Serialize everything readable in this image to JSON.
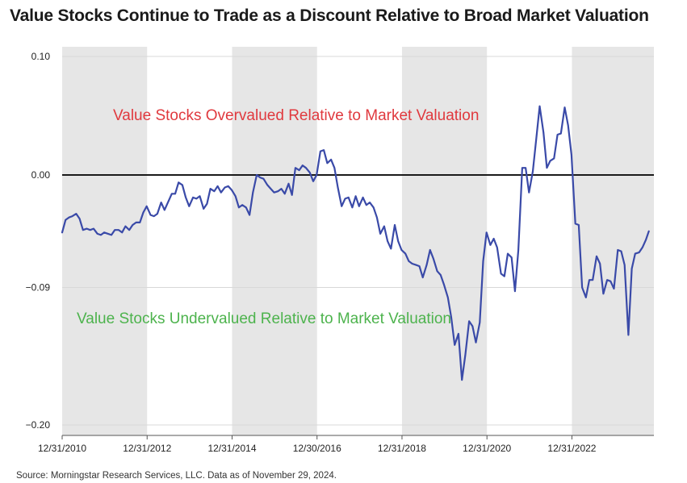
{
  "title": "Value Stocks Continue to Trade as a Discount Relative to Broad Market Valuation",
  "source": "Source: Morningstar Research Services, LLC. Data as of November 29, 2024.",
  "colors": {
    "line": "#3a4aa8",
    "shade": "#e6e6e6",
    "over": "#e0393e",
    "under": "#4db34d",
    "baseline": "#1a1a1a"
  },
  "chart_data": {
    "type": "line",
    "title": "Value Stocks Continue to Trade as a Discount Relative to Broad Market Valuation",
    "xlabel": "",
    "ylabel": "",
    "xlim": [
      2010.99,
      2024.92
    ],
    "ylim": [
      -0.2,
      0.1
    ],
    "y_ticks": [
      {
        "value": 0.1,
        "label": "0.10"
      },
      {
        "value": 0.0,
        "label": "0.00"
      },
      {
        "value": -0.09,
        "label": "−0.09"
      },
      {
        "value": -0.2,
        "label": "−0.20"
      }
    ],
    "x_ticks": [
      {
        "value": 2010.99,
        "label": "12/31/2010"
      },
      {
        "value": 2012.99,
        "label": "12/31/2012"
      },
      {
        "value": 2014.99,
        "label": "12/31/2014"
      },
      {
        "value": 2016.99,
        "label": "12/30/2016"
      },
      {
        "value": 2018.99,
        "label": "12/31/2018"
      },
      {
        "value": 2020.99,
        "label": "12/31/2020"
      },
      {
        "value": 2022.99,
        "label": "12/31/2022"
      }
    ],
    "shaded_bands": [
      [
        2010.99,
        2012.99
      ],
      [
        2014.99,
        2016.99
      ],
      [
        2018.99,
        2020.99
      ],
      [
        2022.99,
        2024.92
      ]
    ],
    "reference_lines": [
      {
        "y": 0.0
      }
    ],
    "annotations": [
      {
        "text": "Value Stocks Overvalued Relative to Market Valuation",
        "color": "#e0393e"
      },
      {
        "text": "Value Stocks Undervalued Relative to Market Valuation",
        "color": "#4db34d"
      }
    ],
    "series": [
      {
        "values": [
          [
            2010.99,
            -0.046
          ],
          [
            2011.07,
            -0.036
          ],
          [
            2011.15,
            -0.034
          ],
          [
            2011.23,
            -0.033
          ],
          [
            2011.32,
            -0.031
          ],
          [
            2011.4,
            -0.035
          ],
          [
            2011.48,
            -0.044
          ],
          [
            2011.57,
            -0.043
          ],
          [
            2011.65,
            -0.044
          ],
          [
            2011.73,
            -0.043
          ],
          [
            2011.82,
            -0.047
          ],
          [
            2011.9,
            -0.048
          ],
          [
            2011.98,
            -0.046
          ],
          [
            2012.07,
            -0.047
          ],
          [
            2012.15,
            -0.048
          ],
          [
            2012.23,
            -0.044
          ],
          [
            2012.32,
            -0.044
          ],
          [
            2012.4,
            -0.046
          ],
          [
            2012.48,
            -0.041
          ],
          [
            2012.57,
            -0.044
          ],
          [
            2012.65,
            -0.04
          ],
          [
            2012.73,
            -0.038
          ],
          [
            2012.82,
            -0.038
          ],
          [
            2012.9,
            -0.03
          ],
          [
            2012.98,
            -0.025
          ],
          [
            2013.07,
            -0.032
          ],
          [
            2013.15,
            -0.033
          ],
          [
            2013.23,
            -0.031
          ],
          [
            2013.32,
            -0.022
          ],
          [
            2013.4,
            -0.028
          ],
          [
            2013.48,
            -0.022
          ],
          [
            2013.57,
            -0.015
          ],
          [
            2013.65,
            -0.015
          ],
          [
            2013.73,
            -0.006
          ],
          [
            2013.82,
            -0.008
          ],
          [
            2013.9,
            -0.018
          ],
          [
            2013.98,
            -0.025
          ],
          [
            2014.07,
            -0.018
          ],
          [
            2014.15,
            -0.019
          ],
          [
            2014.23,
            -0.017
          ],
          [
            2014.32,
            -0.027
          ],
          [
            2014.4,
            -0.023
          ],
          [
            2014.48,
            -0.011
          ],
          [
            2014.57,
            -0.013
          ],
          [
            2014.65,
            -0.009
          ],
          [
            2014.73,
            -0.014
          ],
          [
            2014.82,
            -0.01
          ],
          [
            2014.9,
            -0.009
          ],
          [
            2014.98,
            -0.012
          ],
          [
            2015.07,
            -0.017
          ],
          [
            2015.15,
            -0.026
          ],
          [
            2015.23,
            -0.024
          ],
          [
            2015.32,
            -0.026
          ],
          [
            2015.4,
            -0.032
          ],
          [
            2015.48,
            -0.014
          ],
          [
            2015.57,
            0.0
          ],
          [
            2015.65,
            -0.002
          ],
          [
            2015.73,
            -0.003
          ],
          [
            2015.82,
            -0.008
          ],
          [
            2015.9,
            -0.011
          ],
          [
            2015.98,
            -0.014
          ],
          [
            2016.07,
            -0.013
          ],
          [
            2016.15,
            -0.011
          ],
          [
            2016.23,
            -0.015
          ],
          [
            2016.32,
            -0.007
          ],
          [
            2016.4,
            -0.016
          ],
          [
            2016.48,
            0.006
          ],
          [
            2016.57,
            0.004
          ],
          [
            2016.65,
            0.008
          ],
          [
            2016.73,
            0.006
          ],
          [
            2016.82,
            0.002
          ],
          [
            2016.9,
            -0.005
          ],
          [
            2016.98,
            0.0
          ],
          [
            2017.07,
            0.02
          ],
          [
            2017.15,
            0.021
          ],
          [
            2017.23,
            0.01
          ],
          [
            2017.32,
            0.013
          ],
          [
            2017.4,
            0.006
          ],
          [
            2017.48,
            -0.01
          ],
          [
            2017.57,
            -0.025
          ],
          [
            2017.65,
            -0.019
          ],
          [
            2017.73,
            -0.018
          ],
          [
            2017.82,
            -0.026
          ],
          [
            2017.9,
            -0.017
          ],
          [
            2017.98,
            -0.025
          ],
          [
            2018.07,
            -0.018
          ],
          [
            2018.15,
            -0.024
          ],
          [
            2018.23,
            -0.022
          ],
          [
            2018.32,
            -0.026
          ],
          [
            2018.4,
            -0.034
          ],
          [
            2018.48,
            -0.047
          ],
          [
            2018.57,
            -0.041
          ],
          [
            2018.65,
            -0.053
          ],
          [
            2018.73,
            -0.059
          ],
          [
            2018.82,
            -0.04
          ],
          [
            2018.9,
            -0.053
          ],
          [
            2018.98,
            -0.06
          ],
          [
            2019.07,
            -0.063
          ],
          [
            2019.15,
            -0.069
          ],
          [
            2019.23,
            -0.071
          ],
          [
            2019.32,
            -0.072
          ],
          [
            2019.4,
            -0.073
          ],
          [
            2019.48,
            -0.082
          ],
          [
            2019.57,
            -0.072
          ],
          [
            2019.65,
            -0.06
          ],
          [
            2019.73,
            -0.067
          ],
          [
            2019.82,
            -0.077
          ],
          [
            2019.9,
            -0.08
          ],
          [
            2019.98,
            -0.088
          ],
          [
            2020.07,
            -0.098
          ],
          [
            2020.15,
            -0.114
          ],
          [
            2020.23,
            -0.136
          ],
          [
            2020.32,
            -0.127
          ],
          [
            2020.4,
            -0.164
          ],
          [
            2020.48,
            -0.144
          ],
          [
            2020.57,
            -0.117
          ],
          [
            2020.65,
            -0.121
          ],
          [
            2020.73,
            -0.134
          ],
          [
            2020.82,
            -0.118
          ],
          [
            2020.9,
            -0.069
          ],
          [
            2020.98,
            -0.046
          ],
          [
            2021.07,
            -0.056
          ],
          [
            2021.15,
            -0.051
          ],
          [
            2021.23,
            -0.058
          ],
          [
            2021.32,
            -0.079
          ],
          [
            2021.4,
            -0.081
          ],
          [
            2021.48,
            -0.063
          ],
          [
            2021.57,
            -0.066
          ],
          [
            2021.65,
            -0.093
          ],
          [
            2021.73,
            -0.06
          ],
          [
            2021.82,
            0.006
          ],
          [
            2021.9,
            0.006
          ],
          [
            2021.98,
            -0.014
          ],
          [
            2022.07,
            0.003
          ],
          [
            2022.15,
            0.03
          ],
          [
            2022.23,
            0.058
          ],
          [
            2022.32,
            0.036
          ],
          [
            2022.4,
            0.006
          ],
          [
            2022.48,
            0.012
          ],
          [
            2022.57,
            0.014
          ],
          [
            2022.65,
            0.034
          ],
          [
            2022.73,
            0.035
          ],
          [
            2022.82,
            0.057
          ],
          [
            2022.9,
            0.042
          ],
          [
            2022.98,
            0.017
          ],
          [
            2023.07,
            -0.039
          ],
          [
            2023.15,
            -0.04
          ],
          [
            2023.23,
            -0.09
          ],
          [
            2023.32,
            -0.098
          ],
          [
            2023.4,
            -0.084
          ],
          [
            2023.48,
            -0.084
          ],
          [
            2023.57,
            -0.065
          ],
          [
            2023.65,
            -0.071
          ],
          [
            2023.73,
            -0.095
          ],
          [
            2023.82,
            -0.084
          ],
          [
            2023.9,
            -0.085
          ],
          [
            2023.98,
            -0.091
          ],
          [
            2024.07,
            -0.06
          ],
          [
            2024.15,
            -0.061
          ],
          [
            2024.23,
            -0.072
          ],
          [
            2024.32,
            -0.128
          ],
          [
            2024.4,
            -0.075
          ],
          [
            2024.48,
            -0.063
          ],
          [
            2024.57,
            -0.062
          ],
          [
            2024.65,
            -0.058
          ],
          [
            2024.73,
            -0.052
          ],
          [
            2024.8,
            -0.045
          ]
        ]
      }
    ]
  }
}
